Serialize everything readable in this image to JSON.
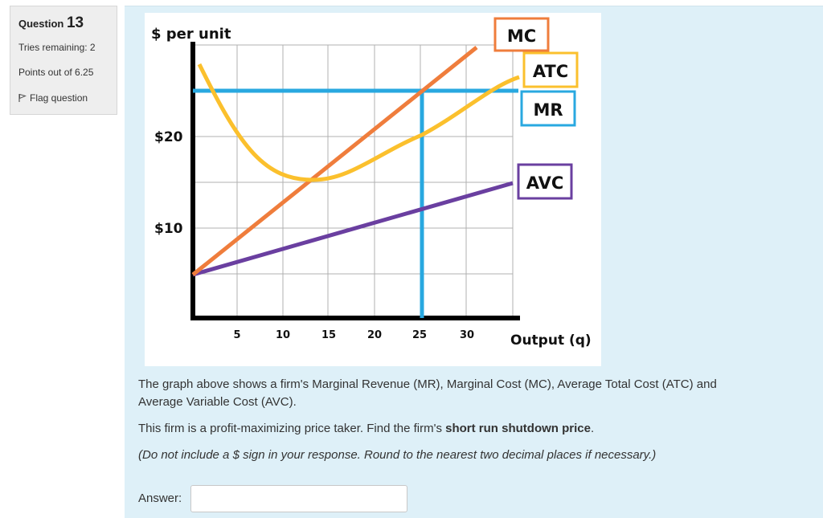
{
  "info": {
    "question_word": "Question",
    "question_number": "13",
    "tries": "Tries remaining: 2",
    "points": "Points out of 6.25",
    "flag": "Flag question"
  },
  "graph": {
    "ylabel": "$ per unit",
    "xlabel": "Output (q)",
    "y_ticks": [
      "$20",
      "$10"
    ],
    "x_ticks": [
      "5",
      "10",
      "15",
      "20",
      "25",
      "30"
    ],
    "legend": {
      "mc": "MC",
      "atc": "ATC",
      "mr": "MR",
      "avc": "AVC"
    },
    "colors": {
      "mc": "#ef7d3c",
      "atc": "#fbc02d",
      "mr": "#29a8e0",
      "avc": "#6a3fa0"
    }
  },
  "question": {
    "line1": "The graph above shows a firm's Marginal Revenue (MR), Marginal Cost (MC), Average Total Cost (ATC) and",
    "line2": "Average Variable Cost (AVC).",
    "line3_pre": "This firm is a profit-maximizing price taker. Find the firm's ",
    "line3_bold": "short run shutdown price",
    "line3_post": ".",
    "note": "(Do not include a $ sign in your response. Round to the nearest two decimal places if necessary.)"
  },
  "answer": {
    "label": "Answer:",
    "value": ""
  }
}
